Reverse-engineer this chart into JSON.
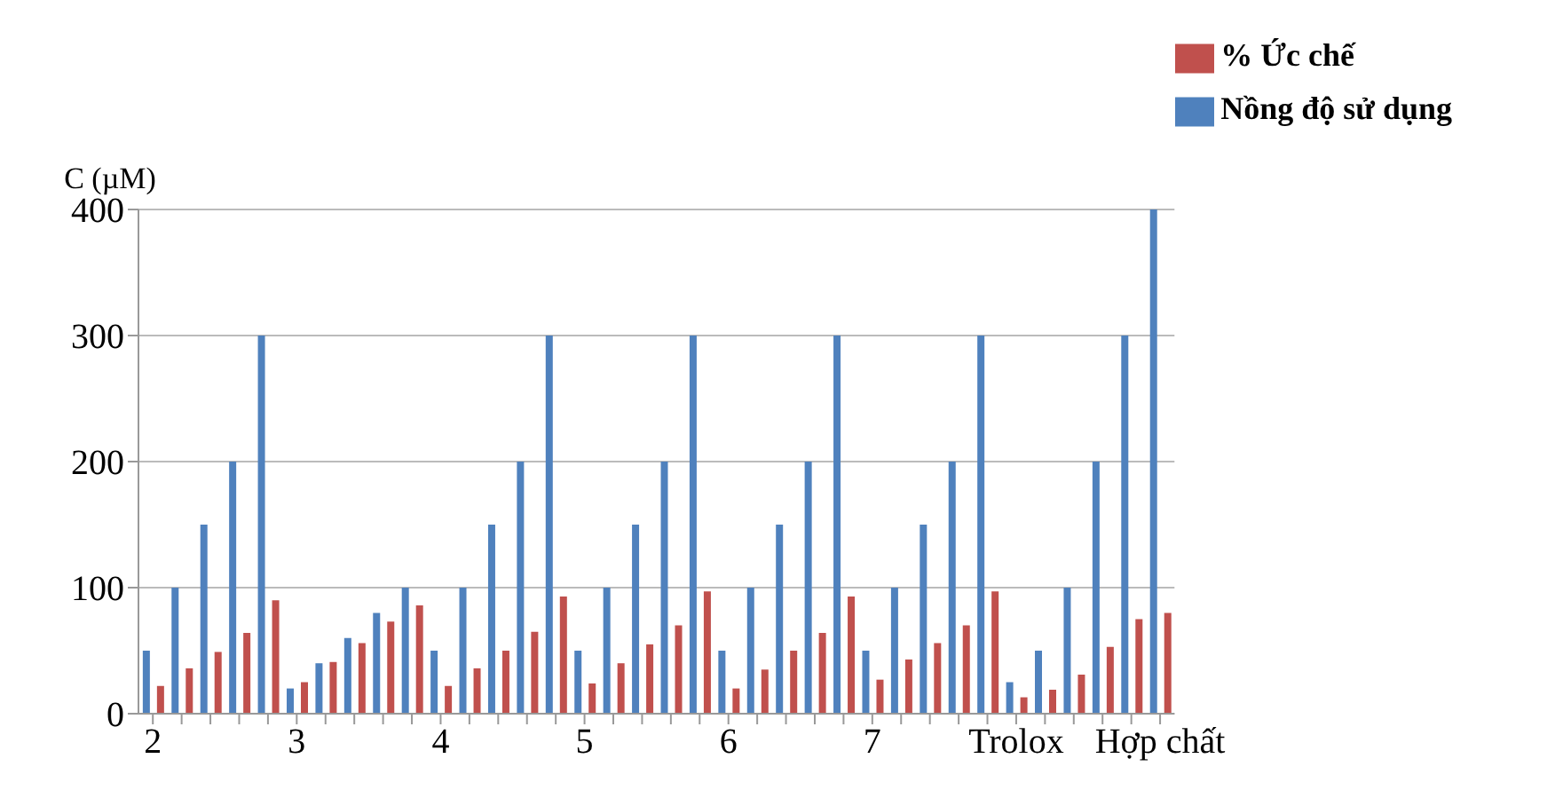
{
  "chart_data": {
    "type": "bar",
    "ylabel": "C (µM)",
    "categories": [
      "2",
      null,
      null,
      null,
      null,
      "3",
      null,
      null,
      null,
      null,
      "4",
      null,
      null,
      null,
      null,
      "5",
      null,
      null,
      null,
      null,
      "6",
      null,
      null,
      null,
      null,
      "7",
      null,
      null,
      null,
      null,
      "Trolox",
      null,
      null,
      null,
      null,
      "Hợp chất"
    ],
    "series": [
      {
        "name": "Nồng độ sử dụng",
        "color": "#4f81bd",
        "values": [
          50,
          100,
          150,
          200,
          300,
          20,
          40,
          60,
          80,
          100,
          50,
          100,
          150,
          200,
          300,
          50,
          100,
          150,
          200,
          300,
          50,
          100,
          150,
          200,
          300,
          50,
          100,
          150,
          200,
          300,
          25,
          50,
          100,
          200,
          300,
          400
        ]
      },
      {
        "name": "% Ức chế",
        "color": "#c0504d",
        "values": [
          22,
          36,
          49,
          64,
          90,
          25,
          41,
          56,
          73,
          86,
          22,
          36,
          50,
          65,
          93,
          24,
          40,
          55,
          70,
          97,
          20,
          35,
          50,
          64,
          93,
          27,
          43,
          56,
          70,
          97,
          13,
          19,
          31,
          53,
          75,
          80
        ]
      }
    ],
    "ylim": [
      0,
      400
    ],
    "yticks": [
      0,
      100,
      200,
      300,
      400
    ],
    "grid": "y",
    "legend": "top right"
  }
}
